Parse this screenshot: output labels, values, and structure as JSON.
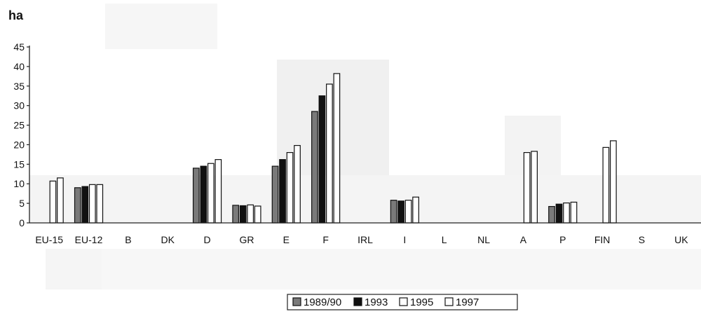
{
  "chart_data": {
    "type": "bar",
    "title": "",
    "unit_label": "ha",
    "xlabel": "",
    "ylabel": "",
    "ylim": [
      0,
      45
    ],
    "yticks": [
      0,
      5,
      10,
      15,
      20,
      25,
      30,
      35,
      40,
      45
    ],
    "grid": false,
    "legend_position": "bottom-center",
    "categories": [
      "EU-15",
      "EU-12",
      "B",
      "DK",
      "D",
      "GR",
      "E",
      "F",
      "IRL",
      "I",
      "L",
      "NL",
      "A",
      "P",
      "FIN",
      "S",
      "UK"
    ],
    "series": [
      {
        "name": "1989/90",
        "color": "#555555",
        "values": [
          null,
          9.0,
          null,
          null,
          14.0,
          4.5,
          14.5,
          28.5,
          null,
          5.8,
          null,
          null,
          null,
          4.2,
          null,
          null,
          null
        ]
      },
      {
        "name": "1993",
        "color": "#111111",
        "values": [
          null,
          9.3,
          null,
          null,
          14.5,
          4.4,
          16.2,
          32.5,
          null,
          5.6,
          null,
          null,
          null,
          4.8,
          null,
          null,
          null
        ]
      },
      {
        "name": "1995",
        "color": "#ffffff",
        "values": [
          10.7,
          9.8,
          null,
          null,
          15.2,
          4.6,
          18.0,
          35.5,
          null,
          5.8,
          null,
          null,
          18.0,
          5.1,
          19.3,
          null,
          null
        ]
      },
      {
        "name": "1997",
        "color": "#ffffff",
        "values": [
          11.5,
          9.8,
          null,
          null,
          16.2,
          4.3,
          19.8,
          38.2,
          null,
          6.6,
          null,
          null,
          18.3,
          5.3,
          21.0,
          null,
          null
        ]
      }
    ]
  }
}
